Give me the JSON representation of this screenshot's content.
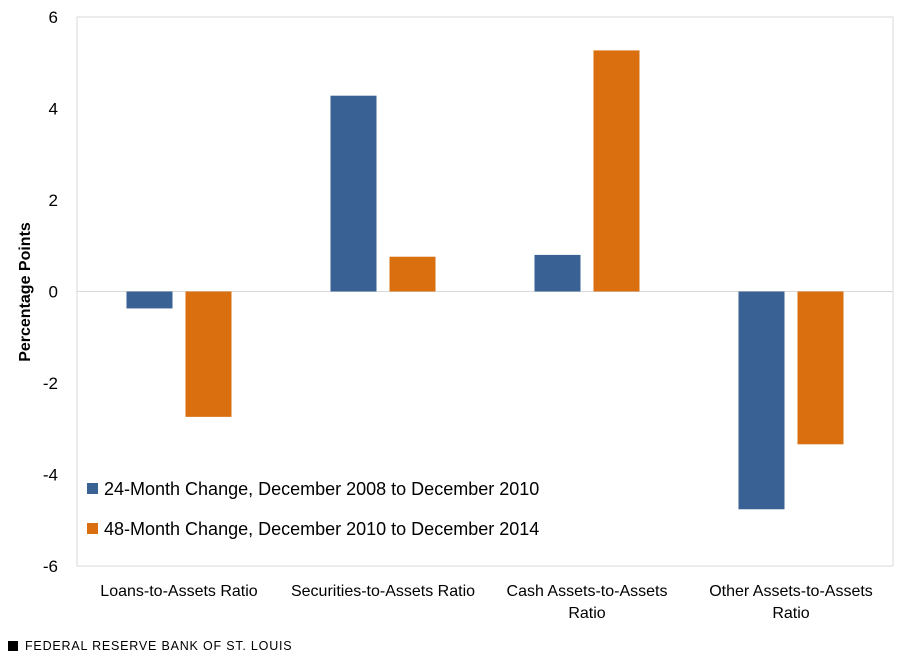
{
  "chart_data": {
    "type": "bar",
    "categories": [
      [
        "Loans-to-Assets Ratio"
      ],
      [
        "Securities-to-Assets Ratio"
      ],
      [
        "Cash Assets-to-Assets",
        "Ratio"
      ],
      [
        "Other Assets-to-Assets",
        "Ratio"
      ]
    ],
    "series": [
      {
        "name": "24-Month Change, December 2008 to December 2010",
        "color": "#3A6193",
        "values": [
          -0.37,
          4.28,
          0.8,
          -4.76
        ]
      },
      {
        "name": "48-Month Change, December 2010 to December 2014",
        "color": "#D96F0E",
        "values": [
          -2.74,
          0.76,
          5.27,
          -3.34
        ]
      }
    ],
    "ylabel": "Percentage Points",
    "ylim": [
      -6,
      6
    ],
    "yticks": [
      6,
      4,
      2,
      0,
      -2,
      -4,
      -6
    ],
    "grid": false,
    "legend_position": "bottom-left"
  },
  "source": {
    "text": "FEDERAL RESERVE BANK OF ST. LOUIS"
  }
}
